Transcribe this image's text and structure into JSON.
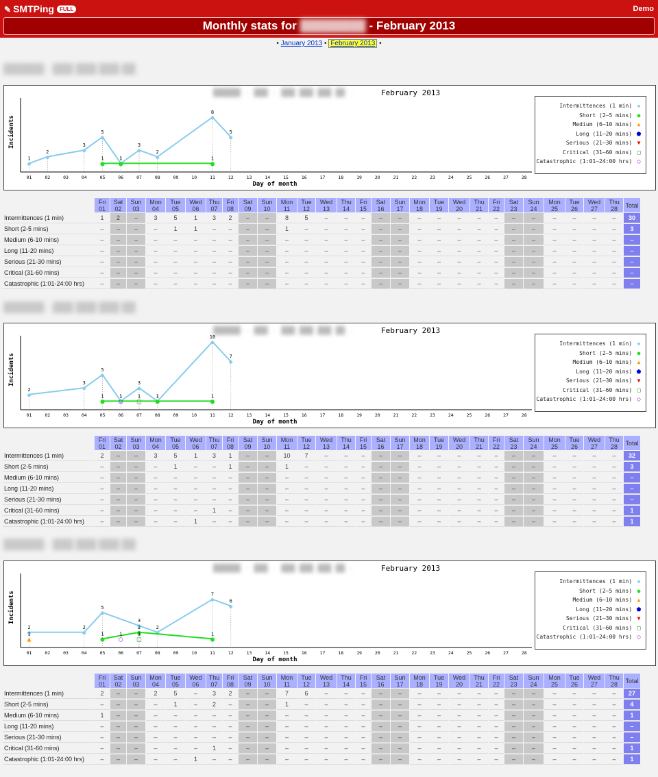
{
  "app": {
    "name": "SMTPing",
    "edition": "FULL",
    "user": "Demo"
  },
  "page": {
    "title_prefix": "Monthly stats for",
    "title_suffix": "- February 2013"
  },
  "nav": {
    "prev": "January 2013",
    "current": "February 2013"
  },
  "days": [
    {
      "dow": "Fri",
      "d": "01",
      "we": false
    },
    {
      "dow": "Sat",
      "d": "02",
      "we": true
    },
    {
      "dow": "Sun",
      "d": "03",
      "we": true
    },
    {
      "dow": "Mon",
      "d": "04",
      "we": false
    },
    {
      "dow": "Tue",
      "d": "05",
      "we": false
    },
    {
      "dow": "Wed",
      "d": "06",
      "we": false
    },
    {
      "dow": "Thu",
      "d": "07",
      "we": false
    },
    {
      "dow": "Fri",
      "d": "08",
      "we": false
    },
    {
      "dow": "Sat",
      "d": "09",
      "we": true
    },
    {
      "dow": "Sun",
      "d": "10",
      "we": true
    },
    {
      "dow": "Mon",
      "d": "11",
      "we": false
    },
    {
      "dow": "Tue",
      "d": "12",
      "we": false
    },
    {
      "dow": "Wed",
      "d": "13",
      "we": false
    },
    {
      "dow": "Thu",
      "d": "14",
      "we": false
    },
    {
      "dow": "Fri",
      "d": "15",
      "we": false
    },
    {
      "dow": "Sat",
      "d": "16",
      "we": true
    },
    {
      "dow": "Sun",
      "d": "17",
      "we": true
    },
    {
      "dow": "Mon",
      "d": "18",
      "we": false
    },
    {
      "dow": "Tue",
      "d": "19",
      "we": false
    },
    {
      "dow": "Wed",
      "d": "20",
      "we": false
    },
    {
      "dow": "Thu",
      "d": "21",
      "we": false
    },
    {
      "dow": "Fri",
      "d": "22",
      "we": false
    },
    {
      "dow": "Sat",
      "d": "23",
      "we": true
    },
    {
      "dow": "Sun",
      "d": "24",
      "we": true
    },
    {
      "dow": "Mon",
      "d": "25",
      "we": false
    },
    {
      "dow": "Tue",
      "d": "26",
      "we": false
    },
    {
      "dow": "Wed",
      "d": "27",
      "we": false
    },
    {
      "dow": "Thu",
      "d": "28",
      "we": false
    }
  ],
  "total_label": "Total",
  "categories": [
    {
      "label": "Intermittences (1 min)",
      "legend": "Intermittences (1 min)",
      "color": "#88ccee",
      "marker": "◆"
    },
    {
      "label": "Short (2-5 mins)",
      "legend": "Short (2–5 mins)",
      "color": "#22dd22",
      "marker": "●"
    },
    {
      "label": "Medium (6-10 mins)",
      "legend": "Medium (6–10 mins)",
      "color": "#ff9900",
      "marker": "▲"
    },
    {
      "label": "Long (11-20 mins)",
      "legend": "Long (11–20 mins)",
      "color": "#0000cc",
      "marker": "⬟"
    },
    {
      "label": "Serious (21-30 mins)",
      "legend": "Serious (21–30 mins)",
      "color": "#ee0000",
      "marker": "▼"
    },
    {
      "label": "Critical (31-60 mins)",
      "legend": "Critical (31–60 mins)",
      "color": "#008800",
      "marker": "□"
    },
    {
      "label": "Catastrophic (1:01-24:00 hrs)",
      "legend": "Catastrophic (1:01–24:00 hrs)",
      "color": "#9900cc",
      "marker": "○"
    }
  ],
  "chart_data": [
    {
      "type": "line",
      "title": "February 2013",
      "xlabel": "Day of month",
      "ylabel": "Incidents",
      "x": [
        "01",
        "02",
        "03",
        "04",
        "05",
        "06",
        "07",
        "08",
        "09",
        "10",
        "11",
        "12",
        "13",
        "14",
        "15",
        "16",
        "17",
        "18",
        "19",
        "20",
        "21",
        "22",
        "23",
        "24",
        "25",
        "26",
        "27",
        "28"
      ],
      "series": [
        {
          "name": "Intermittences (1 min)",
          "points": [
            [
              1,
              1
            ],
            [
              2,
              2
            ],
            [
              4,
              3
            ],
            [
              5,
              5
            ],
            [
              6,
              1
            ],
            [
              7,
              3
            ],
            [
              8,
              2
            ],
            [
              11,
              8
            ],
            [
              12,
              5
            ]
          ]
        },
        {
          "name": "Short (2–5 mins)",
          "points": [
            [
              5,
              1
            ],
            [
              6,
              1
            ],
            [
              11,
              1
            ]
          ]
        }
      ]
    },
    {
      "type": "line",
      "title": "February 2013",
      "xlabel": "Day of month",
      "ylabel": "Incidents",
      "x": [
        "01",
        "02",
        "03",
        "04",
        "05",
        "06",
        "07",
        "08",
        "09",
        "10",
        "11",
        "12",
        "13",
        "14",
        "15",
        "16",
        "17",
        "18",
        "19",
        "20",
        "21",
        "22",
        "23",
        "24",
        "25",
        "26",
        "27",
        "28"
      ],
      "series": [
        {
          "name": "Intermittences (1 min)",
          "points": [
            [
              1,
              2
            ],
            [
              4,
              3
            ],
            [
              5,
              5
            ],
            [
              6,
              1
            ],
            [
              7,
              3
            ],
            [
              8,
              1
            ],
            [
              11,
              10
            ],
            [
              12,
              7
            ]
          ]
        },
        {
          "name": "Short (2–5 mins)",
          "points": [
            [
              5,
              1
            ],
            [
              8,
              1
            ],
            [
              11,
              1
            ]
          ]
        },
        {
          "name": "Critical (31–60 mins)",
          "points": [
            [
              7,
              1
            ]
          ]
        },
        {
          "name": "Catastrophic (1:01–24:00 hrs)",
          "points": [
            [
              6,
              1
            ]
          ]
        }
      ]
    },
    {
      "type": "line",
      "title": "February 2013",
      "xlabel": "Day of month",
      "ylabel": "Incidents",
      "x": [
        "01",
        "02",
        "03",
        "04",
        "05",
        "06",
        "07",
        "08",
        "09",
        "10",
        "11",
        "12",
        "13",
        "14",
        "15",
        "16",
        "17",
        "18",
        "19",
        "20",
        "21",
        "22",
        "23",
        "24",
        "25",
        "26",
        "27",
        "28"
      ],
      "series": [
        {
          "name": "Intermittences (1 min)",
          "points": [
            [
              1,
              2
            ],
            [
              4,
              2
            ],
            [
              5,
              5
            ],
            [
              7,
              3
            ],
            [
              8,
              2
            ],
            [
              11,
              7
            ],
            [
              12,
              6
            ]
          ]
        },
        {
          "name": "Short (2–5 mins)",
          "points": [
            [
              5,
              1
            ],
            [
              7,
              2
            ],
            [
              11,
              1
            ]
          ]
        },
        {
          "name": "Medium (6–10 mins)",
          "points": [
            [
              1,
              1
            ]
          ]
        },
        {
          "name": "Critical (31–60 mins)",
          "points": [
            [
              7,
              1
            ]
          ]
        },
        {
          "name": "Catastrophic (1:01–24:00 hrs)",
          "points": [
            [
              6,
              1
            ]
          ]
        }
      ]
    }
  ],
  "tables": [
    {
      "rows": [
        {
          "cells": [
            "1",
            "2",
            "",
            "3",
            "5",
            "1",
            "3",
            "2",
            "",
            "",
            "8",
            "5",
            "",
            "",
            "",
            "",
            "",
            "",
            "",
            "",
            "",
            "",
            "",
            "",
            "",
            "",
            "",
            ""
          ],
          "total": "30"
        },
        {
          "cells": [
            "",
            "",
            "",
            "",
            "1",
            "1",
            "",
            "",
            "",
            "",
            "1",
            "",
            "",
            "",
            "",
            "",
            "",
            "",
            "",
            "",
            "",
            "",
            "",
            "",
            "",
            "",
            "",
            ""
          ],
          "total": "3"
        },
        {
          "cells": [],
          "total": "–"
        },
        {
          "cells": [],
          "total": "–"
        },
        {
          "cells": [],
          "total": "–"
        },
        {
          "cells": [],
          "total": "–"
        },
        {
          "cells": [],
          "total": "–"
        }
      ]
    },
    {
      "rows": [
        {
          "cells": [
            "2",
            "",
            "",
            "3",
            "5",
            "1",
            "3",
            "1",
            "",
            "",
            "10",
            "7",
            "",
            "",
            "",
            "",
            "",
            "",
            "",
            "",
            "",
            "",
            "",
            "",
            "",
            "",
            "",
            ""
          ],
          "total": "32"
        },
        {
          "cells": [
            "",
            "",
            "",
            "",
            "1",
            "",
            "",
            "1",
            "",
            "",
            "1",
            "",
            "",
            "",
            "",
            "",
            "",
            "",
            "",
            "",
            "",
            "",
            "",
            "",
            "",
            "",
            "",
            ""
          ],
          "total": "3"
        },
        {
          "cells": [],
          "total": "–"
        },
        {
          "cells": [],
          "total": "–"
        },
        {
          "cells": [],
          "total": "–"
        },
        {
          "cells": [
            "",
            "",
            "",
            "",
            "",
            "",
            "1",
            "",
            "",
            "",
            "",
            "",
            "",
            "",
            "",
            "",
            "",
            "",
            "",
            "",
            "",
            "",
            "",
            "",
            "",
            "",
            "",
            ""
          ],
          "total": "1"
        },
        {
          "cells": [
            "",
            "",
            "",
            "",
            "",
            "1",
            "",
            "",
            "",
            "",
            "",
            "",
            "",
            "",
            "",
            "",
            "",
            "",
            "",
            "",
            "",
            "",
            "",
            "",
            "",
            "",
            "",
            ""
          ],
          "total": "1"
        }
      ]
    },
    {
      "rows": [
        {
          "cells": [
            "2",
            "",
            "",
            "2",
            "5",
            "",
            "3",
            "2",
            "",
            "",
            "7",
            "6",
            "",
            "",
            "",
            "",
            "",
            "",
            "",
            "",
            "",
            "",
            "",
            "",
            "",
            "",
            "",
            ""
          ],
          "total": "27"
        },
        {
          "cells": [
            "",
            "",
            "",
            "",
            "1",
            "",
            "2",
            "",
            "",
            "",
            "1",
            "",
            "",
            "",
            "",
            "",
            "",
            "",
            "",
            "",
            "",
            "",
            "",
            "",
            "",
            "",
            "",
            ""
          ],
          "total": "4"
        },
        {
          "cells": [
            "1",
            "",
            "",
            "",
            "",
            "",
            "",
            "",
            "",
            "",
            "",
            "",
            "",
            "",
            "",
            "",
            "",
            "",
            "",
            "",
            "",
            "",
            "",
            "",
            "",
            "",
            "",
            ""
          ],
          "total": "1"
        },
        {
          "cells": [],
          "total": "–"
        },
        {
          "cells": [],
          "total": "–"
        },
        {
          "cells": [
            "",
            "",
            "",
            "",
            "",
            "",
            "1",
            "",
            "",
            "",
            "",
            "",
            "",
            "",
            "",
            "",
            "",
            "",
            "",
            "",
            "",
            "",
            "",
            "",
            "",
            "",
            "",
            ""
          ],
          "total": "1"
        },
        {
          "cells": [
            "",
            "",
            "",
            "",
            "",
            "1",
            "",
            "",
            "",
            "",
            "",
            "",
            "",
            "",
            "",
            "",
            "",
            "",
            "",
            "",
            "",
            "",
            "",
            "",
            "",
            "",
            "",
            ""
          ],
          "total": "1"
        }
      ]
    }
  ],
  "empty_cell": "–"
}
